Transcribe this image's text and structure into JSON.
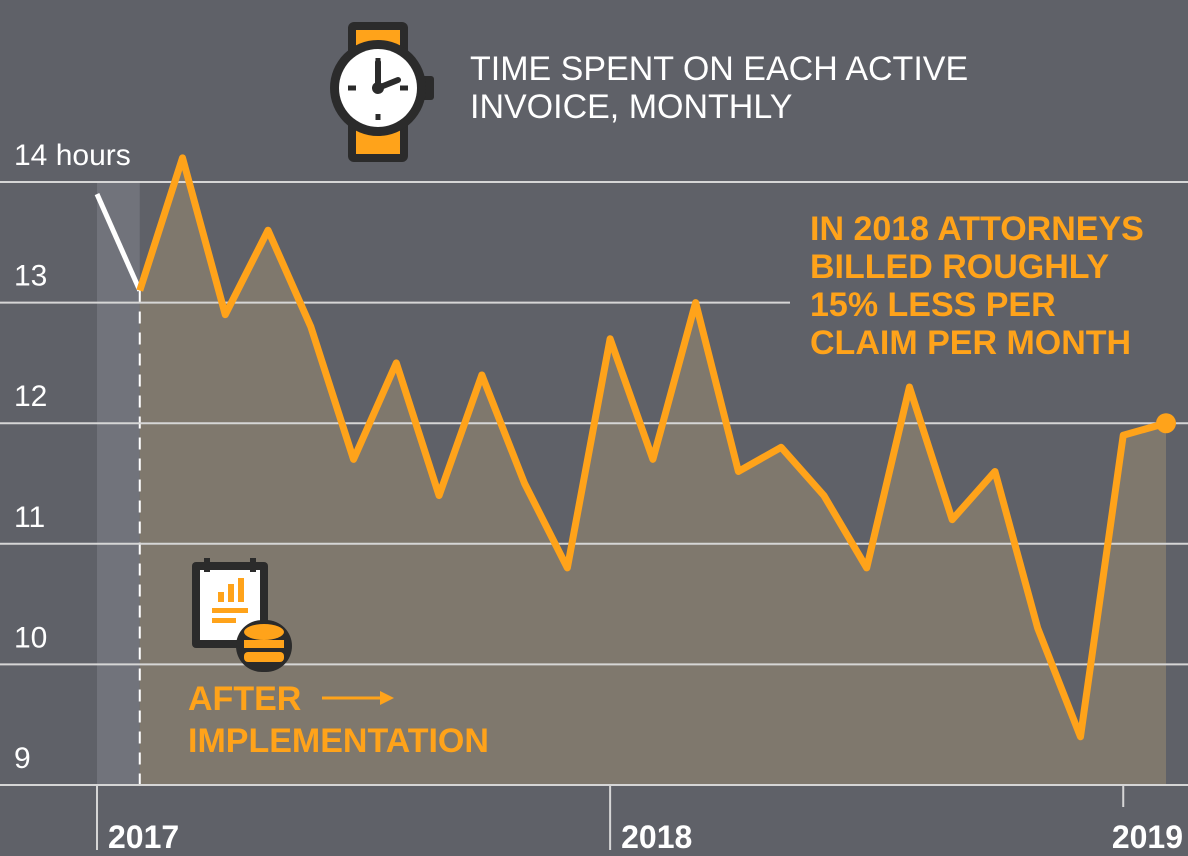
{
  "chart_data": {
    "type": "line",
    "title_lines": [
      "TIME SPENT ON EACH ACTIVE",
      "INVOICE, MONTHLY"
    ],
    "annotation_lines": [
      "IN 2018 ATTORNEYS",
      "BILLED ROUGHLY",
      "15% LESS PER",
      "CLAIM PER MONTH"
    ],
    "marker_lines": [
      "AFTER",
      "IMPLEMENTATION"
    ],
    "x": [
      0,
      1,
      2,
      3,
      4,
      5,
      6,
      7,
      8,
      9,
      10,
      11,
      12,
      13,
      14,
      15,
      16,
      17,
      18,
      19,
      20,
      21,
      22,
      23,
      24,
      25
    ],
    "series": [
      {
        "color": "#ffffff",
        "values": [
          13.9,
          13.1,
          null,
          null,
          null,
          null,
          null,
          null,
          null,
          null,
          null,
          null,
          null,
          null,
          null,
          null,
          null,
          null,
          null,
          null,
          null,
          null,
          null,
          null,
          null,
          null
        ]
      },
      {
        "color": "#ffa31a",
        "values": [
          null,
          13.1,
          14.2,
          12.9,
          13.6,
          12.8,
          11.7,
          12.5,
          11.4,
          12.4,
          11.5,
          10.8,
          12.7,
          11.7,
          13.0,
          11.6,
          11.8,
          11.4,
          10.8,
          12.3,
          11.2,
          11.6,
          10.3,
          9.4,
          11.9,
          12.0
        ]
      }
    ],
    "xlim": [
      0,
      25
    ],
    "xticks": [
      {
        "value": 0,
        "label": "2017"
      },
      {
        "value": 12,
        "label": "2018"
      },
      {
        "value": 24,
        "label": "2019"
      }
    ],
    "ylim": [
      9,
      14
    ],
    "yticks": [
      9,
      10,
      11,
      12,
      13,
      {
        "value": 14,
        "label": "14 hours"
      }
    ],
    "grid": true
  }
}
